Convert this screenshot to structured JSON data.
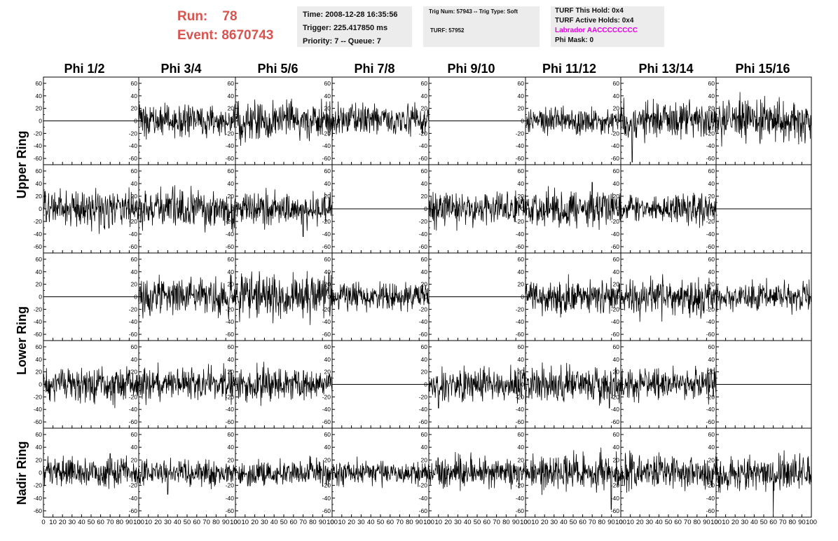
{
  "header": {
    "run_label": "Run:",
    "run_value": "78",
    "event_label": "Event:",
    "event_value": "8670743",
    "accent_color": "#d9534f",
    "info_a": {
      "time": "Time: 2008-12-28 16:35:56",
      "trigger": "Trigger: 225.417850 ms",
      "priority": "Priority: 7 -- Queue: 7"
    },
    "info_b": {
      "trig": "Trig Num: 57943 -- Trig Type: Soft",
      "turf": "TURF: 57952"
    },
    "info_c": {
      "this_hold": "TURF This Hold: 0x4",
      "active_holds": "TURF Active Holds: 0x4",
      "labrador": "Labrador AACCCCCCCC",
      "labrador_color": "#e600e6",
      "phi_mask": "Phi Mask: 0"
    }
  },
  "columns": [
    "Phi 1/2",
    "Phi 3/4",
    "Phi 5/6",
    "Phi 7/8",
    "Phi 9/10",
    "Phi 11/12",
    "Phi 13/14",
    "Phi 15/16"
  ],
  "rings": [
    "Upper Ring",
    "Lower Ring",
    "Nadir Ring"
  ],
  "chart_data": {
    "type": "line",
    "xlim": [
      0,
      100
    ],
    "ylim": [
      -70,
      70
    ],
    "x_ticks": [
      0,
      10,
      20,
      30,
      40,
      50,
      60,
      70,
      80,
      90,
      100
    ],
    "x_tick_labels": [
      "0",
      "10",
      "20",
      "30",
      "40",
      "50",
      "60",
      "70",
      "80",
      "90",
      "100"
    ],
    "y_ticks": [
      -60,
      -40,
      -20,
      0,
      20,
      40,
      60
    ],
    "y_tick_labels": [
      "-60",
      "-40",
      "-20",
      "0",
      "20",
      "40",
      "60"
    ],
    "line_color": "#000000",
    "panels": [
      {
        "row": 0,
        "col": 0,
        "flat": true
      },
      {
        "row": 0,
        "col": 1,
        "amp": 12,
        "spike": null
      },
      {
        "row": 0,
        "col": 2,
        "amp": 16,
        "spike": [
          20,
          34
        ]
      },
      {
        "row": 0,
        "col": 3,
        "amp": 12,
        "spike": null
      },
      {
        "row": 0,
        "col": 4,
        "flat": true
      },
      {
        "row": 0,
        "col": 5,
        "amp": 11,
        "spike": null
      },
      {
        "row": 0,
        "col": 6,
        "amp": 15,
        "spike": [
          12,
          -66
        ]
      },
      {
        "row": 0,
        "col": 7,
        "amp": 16,
        "spike": [
          25,
          46
        ]
      },
      {
        "row": 1,
        "col": 0,
        "amp": 14,
        "spike": [
          55,
          33
        ]
      },
      {
        "row": 1,
        "col": 1,
        "amp": 15,
        "spike": null
      },
      {
        "row": 1,
        "col": 2,
        "amp": 13,
        "spike": [
          70,
          -44
        ]
      },
      {
        "row": 1,
        "col": 3,
        "flat": true
      },
      {
        "row": 1,
        "col": 4,
        "amp": 13,
        "spike": null
      },
      {
        "row": 1,
        "col": 5,
        "amp": 14,
        "spike": [
          70,
          42
        ]
      },
      {
        "row": 1,
        "col": 6,
        "amp": 11,
        "spike": null
      },
      {
        "row": 1,
        "col": 7,
        "flat": true
      },
      {
        "row": 2,
        "col": 0,
        "flat": true
      },
      {
        "row": 2,
        "col": 1,
        "amp": 14,
        "spike": null
      },
      {
        "row": 2,
        "col": 2,
        "amp": 17,
        "spike": [
          40,
          36
        ]
      },
      {
        "row": 2,
        "col": 3,
        "amp": 11,
        "spike": null
      },
      {
        "row": 2,
        "col": 4,
        "flat": true
      },
      {
        "row": 2,
        "col": 5,
        "amp": 13,
        "spike": [
          45,
          36
        ]
      },
      {
        "row": 2,
        "col": 6,
        "amp": 14,
        "spike": [
          20,
          -40
        ]
      },
      {
        "row": 2,
        "col": 7,
        "amp": 11,
        "spike": null
      },
      {
        "row": 3,
        "col": 0,
        "amp": 13,
        "spike": [
          75,
          -38
        ]
      },
      {
        "row": 3,
        "col": 1,
        "amp": 13,
        "spike": [
          20,
          35
        ]
      },
      {
        "row": 3,
        "col": 2,
        "amp": 13,
        "spike": null
      },
      {
        "row": 3,
        "col": 3,
        "flat": true
      },
      {
        "row": 3,
        "col": 4,
        "amp": 13,
        "spike": [
          10,
          -38
        ]
      },
      {
        "row": 3,
        "col": 5,
        "amp": 14,
        "spike": [
          88,
          -38
        ]
      },
      {
        "row": 3,
        "col": 6,
        "amp": 12,
        "spike": [
          55,
          30
        ]
      },
      {
        "row": 3,
        "col": 7,
        "flat": true
      },
      {
        "row": 4,
        "col": 0,
        "amp": 11,
        "spike": [
          70,
          30
        ]
      },
      {
        "row": 4,
        "col": 1,
        "amp": 10,
        "spike": [
          30,
          -34
        ]
      },
      {
        "row": 4,
        "col": 2,
        "amp": 10,
        "spike": null
      },
      {
        "row": 4,
        "col": 3,
        "amp": 10,
        "spike": null
      },
      {
        "row": 4,
        "col": 4,
        "amp": 12,
        "spike": null
      },
      {
        "row": 4,
        "col": 5,
        "amp": 14,
        "spike": [
          90,
          -58
        ]
      },
      {
        "row": 4,
        "col": 6,
        "amp": 13,
        "spike": [
          40,
          32
        ]
      },
      {
        "row": 4,
        "col": 7,
        "amp": 13,
        "spike": [
          60,
          -68
        ]
      }
    ]
  }
}
